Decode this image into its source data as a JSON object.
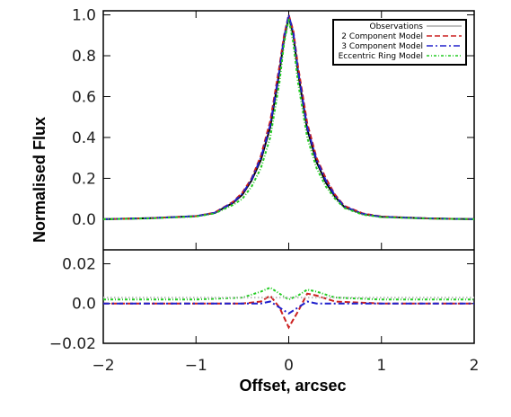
{
  "chart_data": [
    {
      "type": "line",
      "title": "",
      "xlabel": "",
      "ylabel": "Normalised Flux",
      "xlim": [
        -2,
        2
      ],
      "ylim": [
        -0.15,
        1.02
      ],
      "y_ticks": [
        {
          "value": 0.0,
          "label": "0.0"
        },
        {
          "value": 0.2,
          "label": "0.2"
        },
        {
          "value": 0.4,
          "label": "0.4"
        },
        {
          "value": 0.6,
          "label": "0.6"
        },
        {
          "value": 0.8,
          "label": "0.8"
        },
        {
          "value": 1.0,
          "label": "1.0"
        }
      ],
      "legend_position": "top-right",
      "grid": false,
      "x": [
        -2.0,
        -1.5,
        -1.0,
        -0.8,
        -0.6,
        -0.5,
        -0.4,
        -0.3,
        -0.2,
        -0.1,
        -0.05,
        0.0,
        0.05,
        0.1,
        0.2,
        0.3,
        0.4,
        0.5,
        0.6,
        0.8,
        1.0,
        1.5,
        2.0
      ],
      "series": [
        {
          "name": "Observations",
          "color": "#000000",
          "dash": "solid",
          "values": [
            0.0,
            0.005,
            0.015,
            0.03,
            0.08,
            0.12,
            0.19,
            0.29,
            0.45,
            0.72,
            0.88,
            0.99,
            0.9,
            0.72,
            0.44,
            0.28,
            0.18,
            0.11,
            0.06,
            0.025,
            0.012,
            0.004,
            0.0
          ]
        },
        {
          "name": "2 Component Model",
          "color": "#cc2020",
          "dash": "dashed",
          "values": [
            0.0,
            0.005,
            0.015,
            0.032,
            0.085,
            0.13,
            0.2,
            0.31,
            0.48,
            0.75,
            0.9,
            1.0,
            0.92,
            0.75,
            0.47,
            0.3,
            0.2,
            0.12,
            0.065,
            0.028,
            0.013,
            0.004,
            0.0
          ]
        },
        {
          "name": "3 Component Model",
          "color": "#2020cc",
          "dash": "dashdot",
          "values": [
            0.0,
            0.005,
            0.015,
            0.031,
            0.082,
            0.125,
            0.195,
            0.3,
            0.46,
            0.73,
            0.89,
            1.0,
            0.91,
            0.73,
            0.45,
            0.29,
            0.19,
            0.115,
            0.062,
            0.026,
            0.012,
            0.004,
            0.0
          ]
        },
        {
          "name": "Eccentric Ring Model",
          "color": "#22cc22",
          "dash": "dotdash",
          "values": [
            0.0,
            0.004,
            0.013,
            0.028,
            0.07,
            0.1,
            0.16,
            0.25,
            0.4,
            0.67,
            0.86,
            0.98,
            0.86,
            0.67,
            0.4,
            0.25,
            0.16,
            0.1,
            0.055,
            0.022,
            0.01,
            0.003,
            0.0
          ]
        }
      ]
    },
    {
      "type": "line",
      "title": "",
      "xlabel": "Offset, arcsec",
      "ylabel": "",
      "xlim": [
        -2,
        2
      ],
      "ylim": [
        -0.02,
        0.027
      ],
      "x_ticks": [
        {
          "value": -2,
          "label": "−2"
        },
        {
          "value": -1,
          "label": "−1"
        },
        {
          "value": 0,
          "label": "0"
        },
        {
          "value": 1,
          "label": "1"
        },
        {
          "value": 2,
          "label": "2"
        }
      ],
      "y_ticks": [
        {
          "value": -0.02,
          "label": "−0.02"
        },
        {
          "value": 0.0,
          "label": "0.0"
        },
        {
          "value": 0.02,
          "label": "0.02"
        }
      ],
      "grid": false,
      "x": [
        -2.0,
        -1.0,
        -0.5,
        -0.3,
        -0.2,
        -0.1,
        0.0,
        0.1,
        0.2,
        0.3,
        0.5,
        1.0,
        2.0
      ],
      "series": [
        {
          "name": "2 Component Model",
          "color": "#cc2020",
          "dash": "dashed",
          "values": [
            0.0,
            0.0,
            0.0,
            0.001,
            0.004,
            -0.002,
            -0.012,
            -0.004,
            0.005,
            0.004,
            0.001,
            0.0,
            0.0
          ]
        },
        {
          "name": "3 Component Model",
          "color": "#2020cc",
          "dash": "dashdot",
          "values": [
            0.0,
            0.0,
            0.0,
            0.0,
            0.001,
            -0.002,
            -0.005,
            -0.002,
            0.001,
            0.0,
            0.0,
            0.0,
            0.0
          ]
        },
        {
          "name": "Eccentric Ring Model",
          "color": "#22cc22",
          "dash": "dotdash",
          "values": [
            0.002,
            0.002,
            0.003,
            0.006,
            0.008,
            0.005,
            0.002,
            0.004,
            0.007,
            0.006,
            0.003,
            0.002,
            0.002
          ]
        },
        {
          "name": "Observations",
          "color": "#bbbbbb",
          "dash": "dotted",
          "values": [
            0.003,
            0.003,
            0.003,
            0.003,
            0.003,
            0.003,
            0.003,
            0.003,
            0.003,
            0.003,
            0.003,
            0.003,
            0.003
          ]
        }
      ]
    }
  ]
}
